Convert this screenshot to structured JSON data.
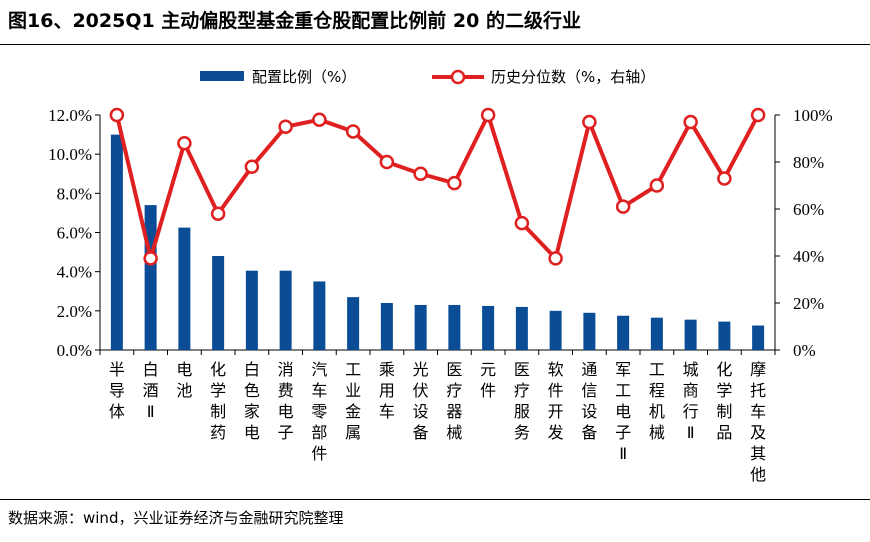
{
  "title": "图16、2025Q1 主动偏股型基金重仓股配置比例前 20 的二级行业",
  "source": "数据来源：wind，兴业证券经济与金融研究院整理",
  "colors": {
    "bar": "#0B4C97",
    "line": "#E02020",
    "marker_fill": "#FFFFFF"
  },
  "chart_data": {
    "type": "bar",
    "categories": [
      "半导体",
      "白酒Ⅱ",
      "电池",
      "化学制药",
      "白色家电",
      "消费电子",
      "汽车零部件",
      "工业金属",
      "乘用车",
      "光伏设备",
      "医疗器械",
      "元件",
      "医疗服务",
      "软件开发",
      "通信设备",
      "军工电子Ⅱ",
      "工程机械",
      "城商行Ⅱ",
      "化学制品",
      "摩托车及其他"
    ],
    "series": [
      {
        "name": "配置比例（%）",
        "type": "bar",
        "axis": "left",
        "values": [
          11.0,
          7.4,
          6.25,
          4.8,
          4.05,
          4.05,
          3.5,
          2.7,
          2.4,
          2.3,
          2.3,
          2.25,
          2.2,
          2.0,
          1.9,
          1.75,
          1.65,
          1.55,
          1.45,
          1.25
        ]
      },
      {
        "name": "历史分位数（%，右轴）",
        "type": "line",
        "axis": "right",
        "values": [
          100,
          39,
          88,
          58,
          78,
          95,
          98,
          93,
          80,
          75,
          71,
          100,
          54,
          39,
          97,
          61,
          70,
          97,
          73,
          100
        ]
      }
    ],
    "yleft": {
      "min": 0,
      "max": 12,
      "ticks": [
        "0.0%",
        "2.0%",
        "4.0%",
        "6.0%",
        "8.0%",
        "10.0%",
        "12.0%"
      ]
    },
    "yright": {
      "min": 0,
      "max": 100,
      "ticks": [
        "0%",
        "20%",
        "40%",
        "60%",
        "80%",
        "100%"
      ]
    },
    "legend_position": "top-center",
    "grid": false
  }
}
